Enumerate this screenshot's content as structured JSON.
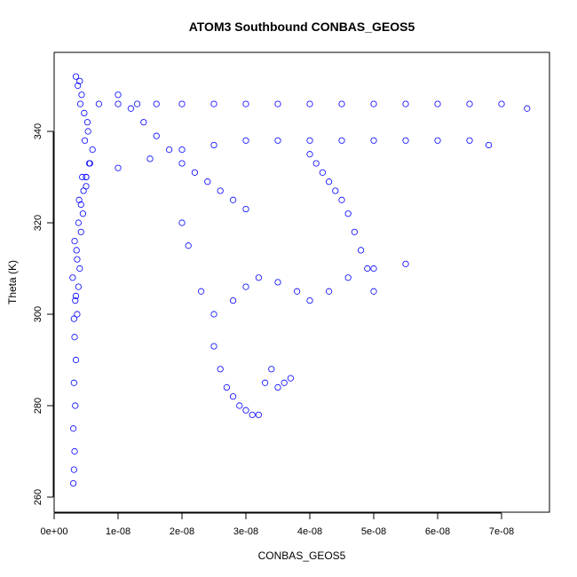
{
  "chart_data": {
    "type": "scatter",
    "title": "ATOM3 Southbound CONBAS_GEOS5",
    "xlabel": "CONBAS_GEOS5",
    "ylabel": "Theta (K)",
    "xlim": [
      0,
      7.5e-08
    ],
    "ylim": [
      262,
      354
    ],
    "x_ticks": [
      {
        "value": 0,
        "label": "0e+00"
      },
      {
        "value": 1e-08,
        "label": "1e-08"
      },
      {
        "value": 2e-08,
        "label": "2e-08"
      },
      {
        "value": 3e-08,
        "label": "3e-08"
      },
      {
        "value": 4e-08,
        "label": "4e-08"
      },
      {
        "value": 5e-08,
        "label": "5e-08"
      },
      {
        "value": 6e-08,
        "label": "6e-08"
      },
      {
        "value": 7e-08,
        "label": "7e-08"
      }
    ],
    "y_ticks": [
      {
        "value": 260,
        "label": "260"
      },
      {
        "value": 280,
        "label": "280"
      },
      {
        "value": 300,
        "label": "300"
      },
      {
        "value": 320,
        "label": "320"
      },
      {
        "value": 340,
        "label": "340"
      }
    ],
    "grid": false,
    "legend": "none",
    "marker": "open-circle",
    "color": "#0000ff",
    "series": [
      {
        "x": [
          3e-09,
          3.1e-09,
          3.2e-09,
          3e-09,
          3.3e-09,
          3.1e-09,
          3.4e-09,
          3.2e-09,
          3.6e-09,
          3.3e-09,
          3.8e-09,
          4e-09,
          3.5e-09,
          4.2e-09,
          4.5e-09,
          3.9e-09,
          5e-09,
          4.4e-09,
          5.5e-09,
          4.8e-09,
          5.2e-09,
          4.1e-09,
          3.7e-09,
          3.4e-09
        ],
        "y": [
          263,
          266,
          270,
          275,
          280,
          285,
          290,
          295,
          300,
          303,
          306,
          310,
          314,
          318,
          322,
          325,
          328,
          330,
          333,
          338,
          342,
          346,
          350,
          352
        ]
      },
      {
        "x": [
          3.1e-09,
          3.4e-09,
          2.9e-09,
          3.6e-09,
          3.2e-09,
          3.8e-09,
          4.2e-09,
          4.6e-09,
          5e-09,
          5.6e-09,
          6e-09,
          5.3e-09,
          4.7e-09,
          4.3e-09,
          4e-09
        ],
        "y": [
          299,
          304,
          308,
          312,
          316,
          320,
          324,
          327,
          330,
          333,
          336,
          340,
          344,
          348,
          351
        ]
      },
      {
        "x": [
          7e-09,
          1e-08,
          1.3e-08,
          1.6e-08,
          2e-08,
          2.5e-08,
          3e-08,
          3.5e-08,
          4e-08,
          4.5e-08,
          5e-08,
          5.5e-08,
          6e-08,
          6.5e-08,
          7e-08,
          7.4e-08
        ],
        "y": [
          346,
          346,
          346,
          346,
          346,
          346,
          346,
          346,
          346,
          346,
          346,
          346,
          346,
          346,
          346,
          345
        ]
      },
      {
        "x": [
          5e-09,
          1e-08,
          1.5e-08,
          2e-08,
          2.5e-08,
          3e-08,
          3.5e-08,
          4e-08,
          4.5e-08,
          5e-08,
          5.5e-08,
          6e-08,
          6.5e-08,
          6.8e-08
        ],
        "y": [
          330,
          332,
          334,
          336,
          337,
          338,
          338,
          338,
          338,
          338,
          338,
          338,
          338,
          337
        ]
      },
      {
        "x": [
          2.5e-08,
          2.6e-08,
          2.7e-08,
          2.8e-08,
          2.9e-08,
          3e-08,
          3.1e-08,
          3.2e-08,
          3.3e-08,
          3.4e-08,
          3.5e-08,
          3.6e-08,
          3.7e-08
        ],
        "y": [
          293,
          288,
          284,
          282,
          280,
          279,
          278,
          278,
          285,
          288,
          284,
          285,
          286
        ]
      },
      {
        "x": [
          2e-08,
          2.1e-08,
          2.3e-08,
          2.5e-08,
          2.8e-08,
          3e-08,
          3.2e-08,
          3.5e-08,
          3.8e-08,
          4e-08,
          4.3e-08,
          4.6e-08,
          5e-08,
          5.5e-08
        ],
        "y": [
          320,
          315,
          305,
          300,
          303,
          306,
          308,
          307,
          305,
          303,
          305,
          308,
          310,
          311
        ]
      },
      {
        "x": [
          1e-08,
          1.2e-08,
          1.4e-08,
          1.6e-08,
          1.8e-08,
          2e-08,
          2.2e-08,
          2.4e-08,
          2.6e-08,
          2.8e-08,
          3e-08
        ],
        "y": [
          348,
          345,
          342,
          339,
          336,
          333,
          331,
          329,
          327,
          325,
          323
        ]
      },
      {
        "x": [
          4e-08,
          4.1e-08,
          4.2e-08,
          4.3e-08,
          4.4e-08,
          4.5e-08,
          4.6e-08,
          4.7e-08,
          4.8e-08,
          4.9e-08,
          5e-08
        ],
        "y": [
          335,
          333,
          331,
          329,
          327,
          325,
          322,
          318,
          314,
          310,
          305
        ]
      }
    ]
  }
}
